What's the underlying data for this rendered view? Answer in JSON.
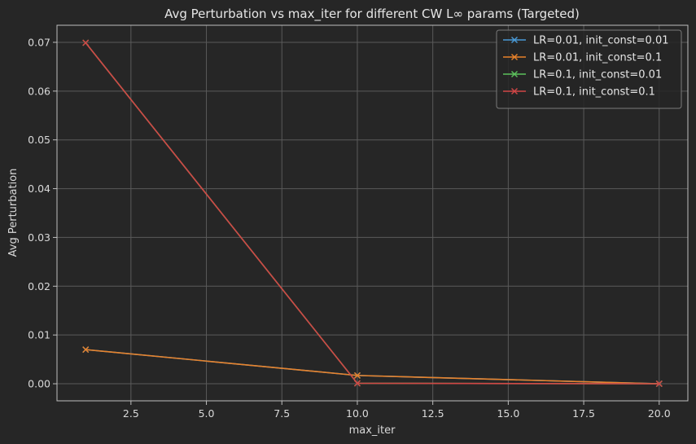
{
  "chart_data": {
    "type": "line",
    "title": "Avg Perturbation vs max_iter for different CW L∞ params (Targeted)",
    "xlabel": "max_iter",
    "ylabel": "Avg Perturbation",
    "xlim": [
      0.05,
      20.95
    ],
    "ylim": [
      -0.0035,
      0.0735
    ],
    "xticks": [
      2.5,
      5.0,
      7.5,
      10.0,
      12.5,
      15.0,
      17.5,
      20.0
    ],
    "xtick_labels": [
      "2.5",
      "5.0",
      "7.5",
      "10.0",
      "12.5",
      "15.0",
      "17.5",
      "20.0"
    ],
    "yticks": [
      0.0,
      0.01,
      0.02,
      0.03,
      0.04,
      0.05,
      0.06,
      0.07
    ],
    "ytick_labels": [
      "0.00",
      "0.01",
      "0.02",
      "0.03",
      "0.04",
      "0.05",
      "0.06",
      "0.07"
    ],
    "grid": true,
    "legend_position": "top-right",
    "marker": "x",
    "x": [
      1,
      10,
      20
    ],
    "series": [
      {
        "name": "LR=0.01, init_const=0.01",
        "color": "#4a9ad6",
        "values": [
          0.007,
          0.0017,
          0.0
        ]
      },
      {
        "name": "LR=0.01, init_const=0.1",
        "color": "#e8822a",
        "values": [
          0.007,
          0.0017,
          0.0
        ]
      },
      {
        "name": "LR=0.1, init_const=0.01",
        "color": "#5cc15c",
        "values": [
          0.0699,
          0.0001,
          0.0
        ]
      },
      {
        "name": "LR=0.1, init_const=0.1",
        "color": "#d04646",
        "values": [
          0.0699,
          0.0001,
          0.0
        ]
      }
    ]
  }
}
